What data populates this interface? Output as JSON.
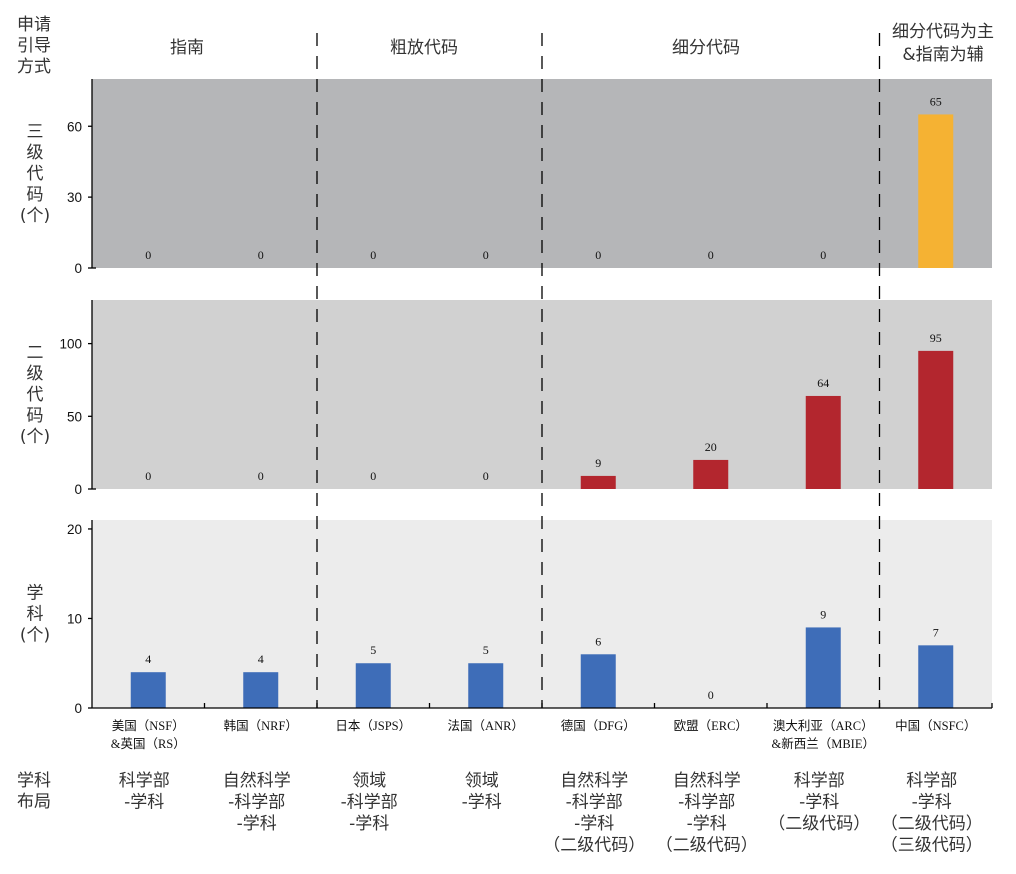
{
  "chart_data": {
    "type": "bar",
    "title": "",
    "xlabel": "",
    "legend": "none",
    "grid": false,
    "categories": [
      "美国（NSF）&英国（RS）",
      "韩国（NRF）",
      "日本（JSPS）",
      "法国（ANR）",
      "德国（DFG）",
      "欧盟（ERC）",
      "澳大利亚（ARC）&新西兰（MBIE）",
      "中国（NSFC）"
    ],
    "category_label_lines": [
      [
        "美国（NSF）",
        "&英国（RS）"
      ],
      [
        "韩国（NRF）"
      ],
      [
        "日本（JSPS）"
      ],
      [
        "法国（ANR）"
      ],
      [
        "德国（DFG）"
      ],
      [
        "欧盟（ERC）"
      ],
      [
        "澳大利亚（ARC）",
        "&新西兰（MBIE）"
      ],
      [
        "中国（NSFC）"
      ]
    ],
    "series": [
      {
        "key": "level3-codes",
        "name": "三级代码(个)",
        "ylabel_lines": [
          "三",
          "级",
          "代",
          "码",
          "(个)"
        ],
        "values": [
          0,
          0,
          0,
          0,
          0,
          0,
          0,
          65
        ],
        "ylim": [
          0,
          80
        ],
        "yticks": [
          0,
          30,
          60
        ],
        "color": "#f5b233",
        "background": "#b5b6b8"
      },
      {
        "key": "level2-codes",
        "name": "二级代码(个)",
        "ylabel_lines": [
          "二",
          "级",
          "代",
          "码",
          "(个)"
        ],
        "values": [
          0,
          0,
          0,
          0,
          9,
          20,
          64,
          95
        ],
        "ylim": [
          0,
          130
        ],
        "yticks": [
          0,
          50,
          100
        ],
        "color": "#b3262e",
        "background": "#d1d1d1"
      },
      {
        "key": "disciplines",
        "name": "学科(个)",
        "ylabel_lines": [
          "学",
          "科",
          "(个)"
        ],
        "values": [
          4,
          4,
          5,
          5,
          6,
          0,
          9,
          7
        ],
        "ylim": [
          0,
          21
        ],
        "yticks": [
          0,
          10,
          20
        ],
        "color": "#3e6db8",
        "background": "#ececec"
      }
    ],
    "groups": [
      {
        "label_lines": [
          "指南"
        ],
        "categories": [
          0,
          1
        ]
      },
      {
        "label_lines": [
          "粗放代码"
        ],
        "categories": [
          2,
          3
        ]
      },
      {
        "label_lines": [
          "细分代码"
        ],
        "categories": [
          4,
          6
        ]
      },
      {
        "label_lines": [
          "细分代码为主",
          "&指南为辅"
        ],
        "categories": [
          7,
          7
        ]
      }
    ],
    "group_separator": "dashed"
  },
  "row_headers": {
    "guidance_method_lines": [
      "申请",
      "引导",
      "方式"
    ],
    "discipline_layout_lines": [
      "学科",
      "布局"
    ]
  },
  "discipline_layouts": [
    [
      "科学部",
      "-学科"
    ],
    [
      "自然科学",
      "-科学部",
      "-学科"
    ],
    [
      "领域",
      "-科学部",
      "-学科"
    ],
    [
      "领域",
      "-学科"
    ],
    [
      "自然科学",
      "-科学部",
      "-学科",
      "（二级代码）"
    ],
    [
      "自然科学",
      "-科学部",
      "-学科",
      "（二级代码）"
    ],
    [
      "科学部",
      "-学科",
      "（二级代码）"
    ],
    [
      "科学部",
      "-学科",
      "（二级代码）",
      "（三级代码）"
    ]
  ]
}
